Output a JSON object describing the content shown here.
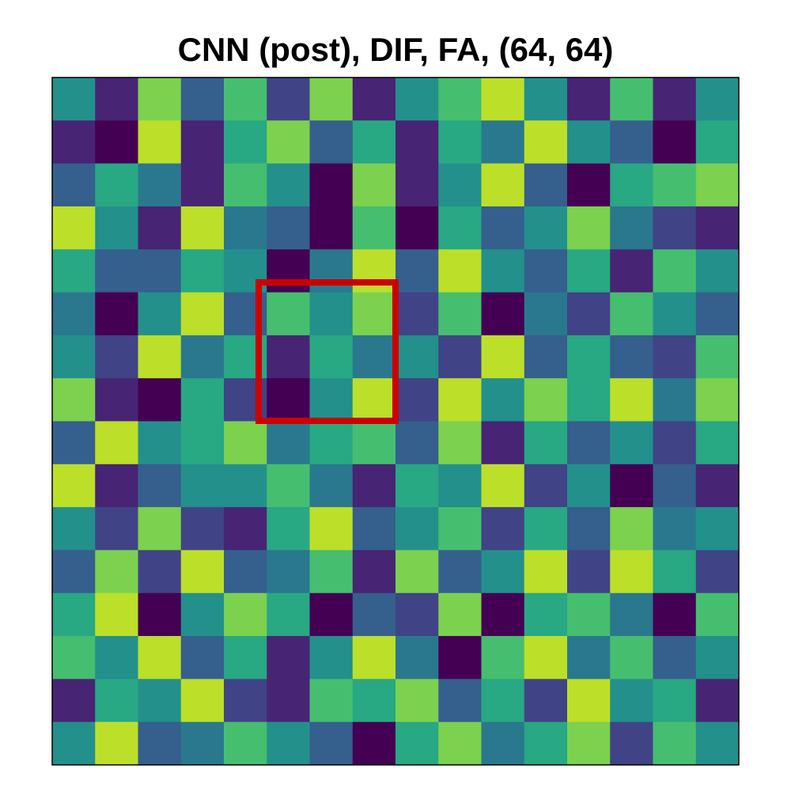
{
  "chart_data": {
    "type": "heatmap",
    "title": "CNN (post), DIF, FA, (64, 64)",
    "colormap": "viridis",
    "clim": [
      0,
      1
    ],
    "values": [
      [
        0.5,
        0.1,
        0.8,
        0.3,
        0.7,
        0.2,
        0.8,
        0.1,
        0.5,
        0.7,
        0.9,
        0.5,
        0.1,
        0.7,
        0.1,
        0.5
      ],
      [
        0.1,
        0.0,
        0.9,
        0.1,
        0.6,
        0.8,
        0.3,
        0.6,
        0.1,
        0.6,
        0.4,
        0.9,
        0.5,
        0.3,
        0.0,
        0.6
      ],
      [
        0.3,
        0.6,
        0.4,
        0.1,
        0.7,
        0.5,
        0.0,
        0.8,
        0.1,
        0.5,
        0.9,
        0.3,
        0.0,
        0.6,
        0.7,
        0.8
      ],
      [
        0.9,
        0.5,
        0.1,
        0.9,
        0.4,
        0.3,
        0.0,
        0.7,
        0.0,
        0.6,
        0.3,
        0.5,
        0.8,
        0.4,
        0.2,
        0.1
      ],
      [
        0.6,
        0.3,
        0.3,
        0.6,
        0.5,
        0.0,
        0.4,
        0.9,
        0.3,
        0.9,
        0.5,
        0.3,
        0.6,
        0.1,
        0.7,
        0.5
      ],
      [
        0.4,
        0.0,
        0.5,
        0.9,
        0.3,
        0.7,
        0.5,
        0.8,
        0.2,
        0.7,
        0.0,
        0.4,
        0.2,
        0.7,
        0.5,
        0.3
      ],
      [
        0.5,
        0.2,
        0.9,
        0.4,
        0.6,
        0.1,
        0.6,
        0.4,
        0.5,
        0.2,
        0.9,
        0.3,
        0.6,
        0.3,
        0.2,
        0.7
      ],
      [
        0.8,
        0.1,
        0.0,
        0.6,
        0.2,
        0.0,
        0.5,
        0.9,
        0.2,
        0.9,
        0.5,
        0.8,
        0.6,
        0.9,
        0.4,
        0.8
      ],
      [
        0.3,
        0.9,
        0.5,
        0.6,
        0.8,
        0.4,
        0.6,
        0.7,
        0.3,
        0.8,
        0.1,
        0.6,
        0.3,
        0.5,
        0.2,
        0.6
      ],
      [
        0.9,
        0.1,
        0.3,
        0.5,
        0.5,
        0.7,
        0.4,
        0.1,
        0.6,
        0.5,
        0.9,
        0.2,
        0.5,
        0.0,
        0.3,
        0.1
      ],
      [
        0.5,
        0.2,
        0.8,
        0.2,
        0.1,
        0.6,
        0.9,
        0.3,
        0.5,
        0.7,
        0.2,
        0.6,
        0.3,
        0.8,
        0.4,
        0.5
      ],
      [
        0.3,
        0.8,
        0.2,
        0.9,
        0.3,
        0.4,
        0.7,
        0.1,
        0.8,
        0.3,
        0.5,
        0.9,
        0.2,
        0.9,
        0.6,
        0.2
      ],
      [
        0.6,
        0.9,
        0.0,
        0.5,
        0.8,
        0.6,
        0.0,
        0.3,
        0.2,
        0.8,
        0.0,
        0.6,
        0.7,
        0.4,
        0.0,
        0.7
      ],
      [
        0.7,
        0.5,
        0.9,
        0.3,
        0.6,
        0.1,
        0.5,
        0.9,
        0.4,
        0.0,
        0.7,
        0.9,
        0.4,
        0.7,
        0.3,
        0.5
      ],
      [
        0.1,
        0.6,
        0.5,
        0.9,
        0.2,
        0.1,
        0.7,
        0.6,
        0.8,
        0.3,
        0.6,
        0.2,
        0.9,
        0.5,
        0.6,
        0.1
      ],
      [
        0.5,
        0.9,
        0.3,
        0.4,
        0.7,
        0.5,
        0.3,
        0.0,
        0.6,
        0.8,
        0.4,
        0.6,
        0.8,
        0.2,
        0.7,
        0.5
      ]
    ]
  }
}
